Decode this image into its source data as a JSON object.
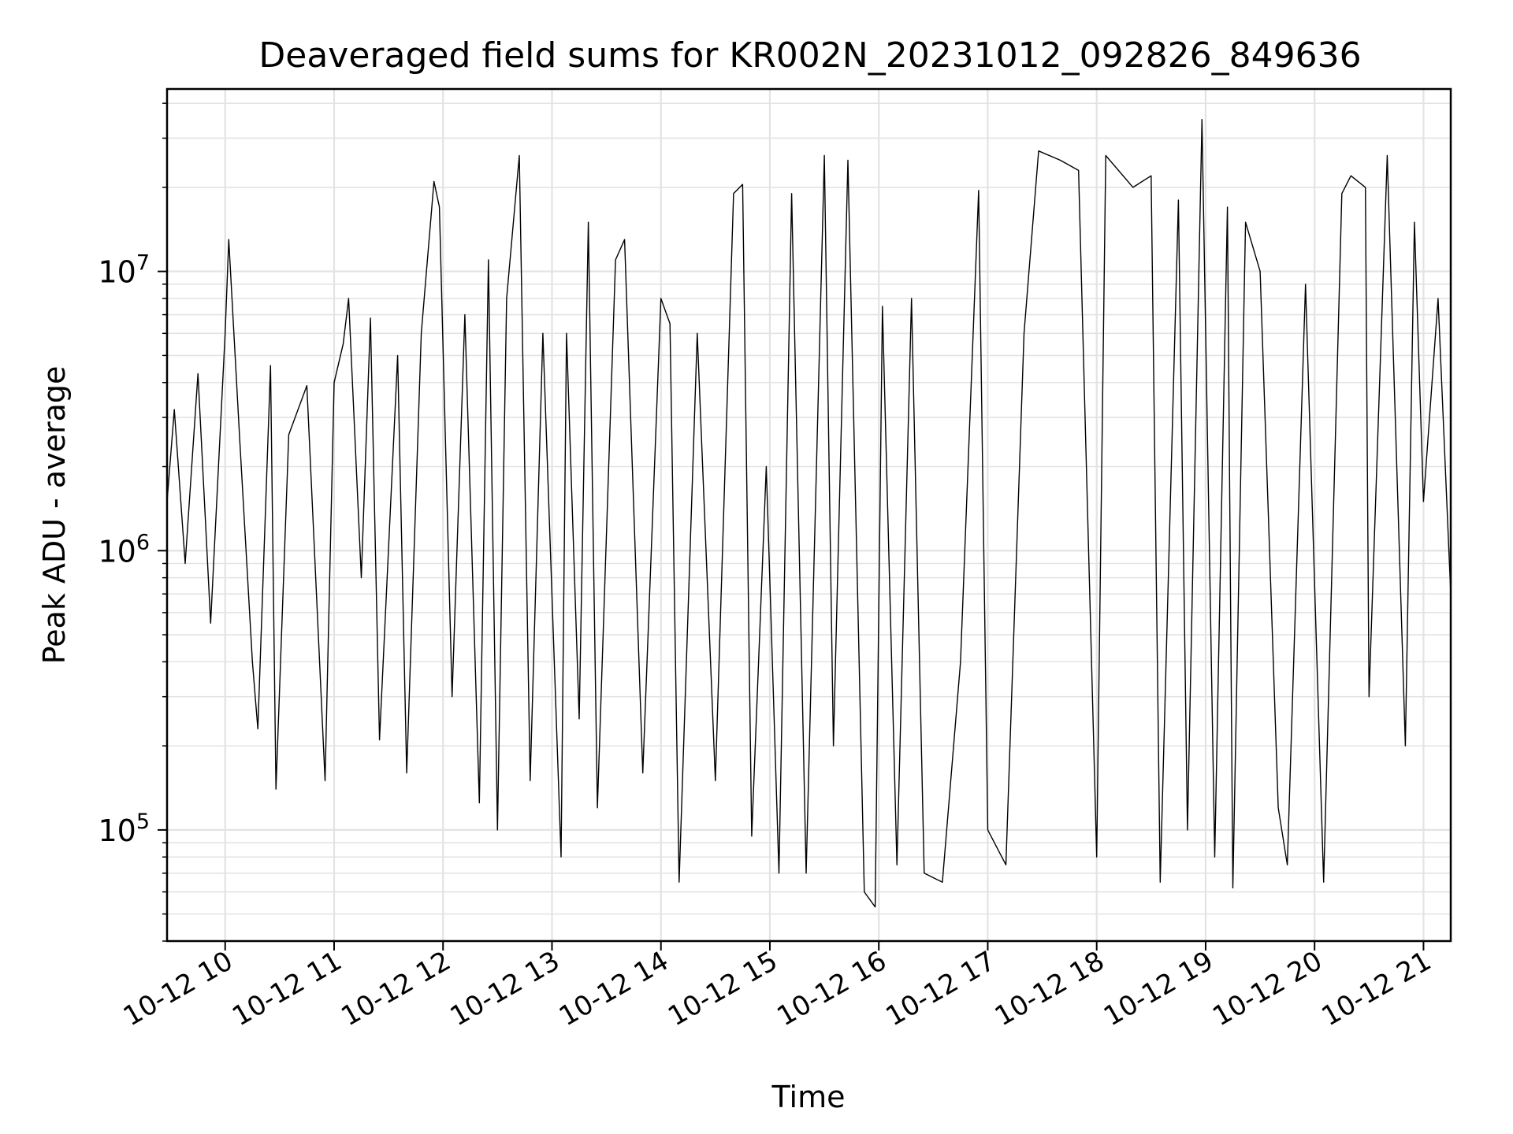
{
  "chart_data": {
    "type": "line",
    "title": "Deaveraged field sums for KR002N_20231012_092826_849636",
    "xlabel": "Time",
    "ylabel": "Peak ADU - average",
    "x_axis": {
      "kind": "time",
      "range": [
        "2023-10-12 09:28",
        "2023-10-12 21:15"
      ],
      "ticks": [
        {
          "value": "2023-10-12 10:00",
          "label": "10-12 10"
        },
        {
          "value": "2023-10-12 11:00",
          "label": "10-12 11"
        },
        {
          "value": "2023-10-12 12:00",
          "label": "10-12 12"
        },
        {
          "value": "2023-10-12 13:00",
          "label": "10-12 13"
        },
        {
          "value": "2023-10-12 14:00",
          "label": "10-12 14"
        },
        {
          "value": "2023-10-12 15:00",
          "label": "10-12 15"
        },
        {
          "value": "2023-10-12 16:00",
          "label": "10-12 16"
        },
        {
          "value": "2023-10-12 17:00",
          "label": "10-12 17"
        },
        {
          "value": "2023-10-12 18:00",
          "label": "10-12 18"
        },
        {
          "value": "2023-10-12 19:00",
          "label": "10-12 19"
        },
        {
          "value": "2023-10-12 20:00",
          "label": "10-12 20"
        },
        {
          "value": "2023-10-12 21:00",
          "label": "10-12 21"
        }
      ]
    },
    "y_axis": {
      "scale": "log",
      "range": [
        40000,
        45000000
      ],
      "ticks": [
        {
          "value": 100000,
          "base": "10",
          "exp": "5"
        },
        {
          "value": 1000000,
          "base": "10",
          "exp": "6"
        },
        {
          "value": 10000000,
          "base": "10",
          "exp": "7"
        }
      ]
    },
    "grid": true,
    "series": [
      {
        "color": "#000000",
        "points": [
          [
            "2023-10-12 09:28",
            1500000
          ],
          [
            "2023-10-12 09:32",
            3200000
          ],
          [
            "2023-10-12 09:38",
            900000
          ],
          [
            "2023-10-12 09:45",
            4300000
          ],
          [
            "2023-10-12 09:52",
            550000
          ],
          [
            "2023-10-12 10:00",
            6000000
          ],
          [
            "2023-10-12 10:02",
            13000000
          ],
          [
            "2023-10-12 10:08",
            2500000
          ],
          [
            "2023-10-12 10:15",
            400000
          ],
          [
            "2023-10-12 10:18",
            230000
          ],
          [
            "2023-10-12 10:25",
            4600000
          ],
          [
            "2023-10-12 10:28",
            140000
          ],
          [
            "2023-10-12 10:35",
            2600000
          ],
          [
            "2023-10-12 10:45",
            3900000
          ],
          [
            "2023-10-12 10:55",
            150000
          ],
          [
            "2023-10-12 11:00",
            4000000
          ],
          [
            "2023-10-12 11:05",
            5500000
          ],
          [
            "2023-10-12 11:08",
            8000000
          ],
          [
            "2023-10-12 11:15",
            800000
          ],
          [
            "2023-10-12 11:20",
            6800000
          ],
          [
            "2023-10-12 11:25",
            210000
          ],
          [
            "2023-10-12 11:35",
            5000000
          ],
          [
            "2023-10-12 11:40",
            160000
          ],
          [
            "2023-10-12 11:48",
            6000000
          ],
          [
            "2023-10-12 11:55",
            21000000
          ],
          [
            "2023-10-12 11:58",
            17000000
          ],
          [
            "2023-10-12 12:05",
            300000
          ],
          [
            "2023-10-12 12:12",
            7000000
          ],
          [
            "2023-10-12 12:20",
            125000
          ],
          [
            "2023-10-12 12:25",
            11000000
          ],
          [
            "2023-10-12 12:30",
            100000
          ],
          [
            "2023-10-12 12:35",
            8000000
          ],
          [
            "2023-10-12 12:42",
            26000000
          ],
          [
            "2023-10-12 12:48",
            150000
          ],
          [
            "2023-10-12 12:55",
            6000000
          ],
          [
            "2023-10-12 13:05",
            80000
          ],
          [
            "2023-10-12 13:08",
            6000000
          ],
          [
            "2023-10-12 13:15",
            250000
          ],
          [
            "2023-10-12 13:20",
            15000000
          ],
          [
            "2023-10-12 13:25",
            120000
          ],
          [
            "2023-10-12 13:35",
            11000000
          ],
          [
            "2023-10-12 13:40",
            13000000
          ],
          [
            "2023-10-12 13:50",
            160000
          ],
          [
            "2023-10-12 14:00",
            8000000
          ],
          [
            "2023-10-12 14:05",
            6500000
          ],
          [
            "2023-10-12 14:10",
            65000
          ],
          [
            "2023-10-12 14:20",
            6000000
          ],
          [
            "2023-10-12 14:30",
            150000
          ],
          [
            "2023-10-12 14:40",
            19000000
          ],
          [
            "2023-10-12 14:45",
            20500000
          ],
          [
            "2023-10-12 14:50",
            95000
          ],
          [
            "2023-10-12 14:58",
            2000000
          ],
          [
            "2023-10-12 15:05",
            70000
          ],
          [
            "2023-10-12 15:12",
            19000000
          ],
          [
            "2023-10-12 15:20",
            70000
          ],
          [
            "2023-10-12 15:30",
            26000000
          ],
          [
            "2023-10-12 15:35",
            200000
          ],
          [
            "2023-10-12 15:43",
            25000000
          ],
          [
            "2023-10-12 15:52",
            60000
          ],
          [
            "2023-10-12 15:58",
            53000
          ],
          [
            "2023-10-12 16:02",
            7500000
          ],
          [
            "2023-10-12 16:10",
            75000
          ],
          [
            "2023-10-12 16:18",
            8000000
          ],
          [
            "2023-10-12 16:25",
            70000
          ],
          [
            "2023-10-12 16:35",
            65000
          ],
          [
            "2023-10-12 16:45",
            400000
          ],
          [
            "2023-10-12 16:55",
            19500000
          ],
          [
            "2023-10-12 17:00",
            100000
          ],
          [
            "2023-10-12 17:10",
            75000
          ],
          [
            "2023-10-12 17:20",
            6000000
          ],
          [
            "2023-10-12 17:28",
            27000000
          ],
          [
            "2023-10-12 17:40",
            25000000
          ],
          [
            "2023-10-12 17:50",
            23000000
          ],
          [
            "2023-10-12 18:00",
            80000
          ],
          [
            "2023-10-12 18:05",
            26000000
          ],
          [
            "2023-10-12 18:20",
            20000000
          ],
          [
            "2023-10-12 18:30",
            22000000
          ],
          [
            "2023-10-12 18:35",
            65000
          ],
          [
            "2023-10-12 18:45",
            18000000
          ],
          [
            "2023-10-12 18:50",
            100000
          ],
          [
            "2023-10-12 18:58",
            35000000
          ],
          [
            "2023-10-12 19:05",
            80000
          ],
          [
            "2023-10-12 19:12",
            17000000
          ],
          [
            "2023-10-12 19:15",
            62000
          ],
          [
            "2023-10-12 19:22",
            15000000
          ],
          [
            "2023-10-12 19:30",
            10000000
          ],
          [
            "2023-10-12 19:40",
            120000
          ],
          [
            "2023-10-12 19:45",
            75000
          ],
          [
            "2023-10-12 19:55",
            9000000
          ],
          [
            "2023-10-12 20:05",
            65000
          ],
          [
            "2023-10-12 20:15",
            19000000
          ],
          [
            "2023-10-12 20:20",
            22000000
          ],
          [
            "2023-10-12 20:28",
            20000000
          ],
          [
            "2023-10-12 20:30",
            300000
          ],
          [
            "2023-10-12 20:40",
            26000000
          ],
          [
            "2023-10-12 20:50",
            200000
          ],
          [
            "2023-10-12 20:55",
            15000000
          ],
          [
            "2023-10-12 21:00",
            1500000
          ],
          [
            "2023-10-12 21:08",
            8000000
          ],
          [
            "2023-10-12 21:15",
            700000
          ]
        ]
      }
    ]
  }
}
